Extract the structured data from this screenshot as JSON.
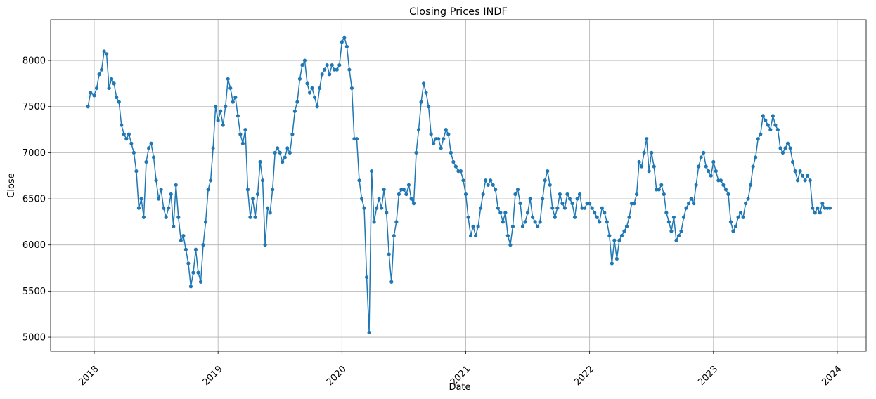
{
  "chart_data": {
    "type": "line",
    "title": "Closing Prices INDF",
    "xlabel": "Date",
    "ylabel": "Close",
    "color": "#1f77b4",
    "grid": true,
    "xlim": [
      2017.648,
      2024.233
    ],
    "xticks": [
      2018,
      2019,
      2020,
      2021,
      2022,
      2023,
      2024
    ],
    "ylim": [
      4848,
      8442
    ],
    "yticks": [
      5000,
      5500,
      6000,
      6500,
      7000,
      7500,
      8000
    ],
    "x": [
      2017.95,
      2017.97,
      2018.0,
      2018.02,
      2018.04,
      2018.06,
      2018.08,
      2018.1,
      2018.12,
      2018.14,
      2018.16,
      2018.18,
      2018.2,
      2018.22,
      2018.24,
      2018.26,
      2018.28,
      2018.3,
      2018.32,
      2018.34,
      2018.36,
      2018.38,
      2018.4,
      2018.42,
      2018.44,
      2018.46,
      2018.48,
      2018.5,
      2018.52,
      2018.54,
      2018.56,
      2018.58,
      2018.6,
      2018.62,
      2018.64,
      2018.66,
      2018.68,
      2018.7,
      2018.72,
      2018.74,
      2018.76,
      2018.78,
      2018.8,
      2018.82,
      2018.84,
      2018.86,
      2018.88,
      2018.9,
      2018.92,
      2018.94,
      2018.96,
      2018.98,
      2019.0,
      2019.02,
      2019.04,
      2019.06,
      2019.08,
      2019.1,
      2019.12,
      2019.14,
      2019.16,
      2019.18,
      2019.2,
      2019.22,
      2019.24,
      2019.26,
      2019.28,
      2019.3,
      2019.32,
      2019.34,
      2019.36,
      2019.38,
      2019.4,
      2019.42,
      2019.44,
      2019.46,
      2019.48,
      2019.5,
      2019.52,
      2019.54,
      2019.56,
      2019.58,
      2019.6,
      2019.62,
      2019.64,
      2019.66,
      2019.68,
      2019.7,
      2019.72,
      2019.74,
      2019.76,
      2019.78,
      2019.8,
      2019.82,
      2019.84,
      2019.86,
      2019.88,
      2019.9,
      2019.92,
      2019.94,
      2019.96,
      2019.98,
      2020.0,
      2020.02,
      2020.04,
      2020.06,
      2020.08,
      2020.1,
      2020.12,
      2020.14,
      2020.16,
      2020.18,
      2020.2,
      2020.22,
      2020.24,
      2020.26,
      2020.28,
      2020.3,
      2020.32,
      2020.34,
      2020.36,
      2020.38,
      2020.4,
      2020.42,
      2020.44,
      2020.46,
      2020.48,
      2020.5,
      2020.52,
      2020.54,
      2020.56,
      2020.58,
      2020.6,
      2020.62,
      2020.64,
      2020.66,
      2020.68,
      2020.7,
      2020.72,
      2020.74,
      2020.76,
      2020.78,
      2020.8,
      2020.82,
      2020.84,
      2020.86,
      2020.88,
      2020.9,
      2020.92,
      2020.94,
      2020.96,
      2020.98,
      2021.0,
      2021.02,
      2021.04,
      2021.06,
      2021.08,
      2021.1,
      2021.12,
      2021.14,
      2021.16,
      2021.18,
      2021.2,
      2021.22,
      2021.24,
      2021.26,
      2021.28,
      2021.3,
      2021.32,
      2021.34,
      2021.36,
      2021.38,
      2021.4,
      2021.42,
      2021.44,
      2021.46,
      2021.48,
      2021.5,
      2021.52,
      2021.54,
      2021.56,
      2021.58,
      2021.6,
      2021.62,
      2021.64,
      2021.66,
      2021.68,
      2021.7,
      2021.72,
      2021.74,
      2021.76,
      2021.78,
      2021.8,
      2021.82,
      2021.84,
      2021.86,
      2021.88,
      2021.9,
      2021.92,
      2021.94,
      2021.96,
      2021.98,
      2022.0,
      2022.02,
      2022.04,
      2022.06,
      2022.08,
      2022.1,
      2022.12,
      2022.14,
      2022.16,
      2022.18,
      2022.2,
      2022.22,
      2022.24,
      2022.26,
      2022.28,
      2022.3,
      2022.32,
      2022.34,
      2022.36,
      2022.38,
      2022.4,
      2022.42,
      2022.44,
      2022.46,
      2022.48,
      2022.5,
      2022.52,
      2022.54,
      2022.56,
      2022.58,
      2022.6,
      2022.62,
      2022.64,
      2022.66,
      2022.68,
      2022.7,
      2022.72,
      2022.74,
      2022.76,
      2022.78,
      2022.8,
      2022.82,
      2022.84,
      2022.86,
      2022.88,
      2022.9,
      2022.92,
      2022.94,
      2022.96,
      2022.98,
      2023.0,
      2023.02,
      2023.04,
      2023.06,
      2023.08,
      2023.1,
      2023.12,
      2023.14,
      2023.16,
      2023.18,
      2023.2,
      2023.22,
      2023.24,
      2023.26,
      2023.28,
      2023.3,
      2023.32,
      2023.34,
      2023.36,
      2023.38,
      2023.4,
      2023.42,
      2023.44,
      2023.46,
      2023.48,
      2023.5,
      2023.52,
      2023.54,
      2023.56,
      2023.58,
      2023.6,
      2023.62,
      2023.64,
      2023.66,
      2023.68,
      2023.7,
      2023.72,
      2023.74,
      2023.76,
      2023.78,
      2023.8,
      2023.82,
      2023.84,
      2023.86,
      2023.88,
      2023.9,
      2023.92,
      2023.94
    ],
    "values": [
      7500,
      7650,
      7620,
      7700,
      7850,
      7900,
      8100,
      8070,
      7700,
      7800,
      7750,
      7600,
      7550,
      7300,
      7200,
      7150,
      7200,
      7100,
      7000,
      6800,
      6400,
      6500,
      6300,
      6900,
      7050,
      7100,
      6950,
      6700,
      6500,
      6600,
      6400,
      6300,
      6400,
      6550,
      6200,
      6650,
      6300,
      6050,
      6100,
      5950,
      5800,
      5550,
      5700,
      5950,
      5700,
      5600,
      6000,
      6250,
      6600,
      6700,
      7050,
      7500,
      7350,
      7450,
      7300,
      7500,
      7800,
      7700,
      7550,
      7600,
      7400,
      7200,
      7100,
      7250,
      6600,
      6300,
      6500,
      6300,
      6550,
      6900,
      6700,
      6000,
      6400,
      6350,
      6600,
      7000,
      7050,
      7000,
      6900,
      6950,
      7050,
      7000,
      7200,
      7450,
      7550,
      7800,
      7950,
      8000,
      7750,
      7650,
      7700,
      7600,
      7500,
      7700,
      7850,
      7900,
      7950,
      7850,
      7950,
      7900,
      7900,
      7950,
      8200,
      8250,
      8150,
      7900,
      7700,
      7150,
      7150,
      6700,
      6500,
      6400,
      5650,
      5050,
      6800,
      6250,
      6400,
      6500,
      6400,
      6600,
      6350,
      5900,
      5600,
      6100,
      6250,
      6550,
      6600,
      6600,
      6550,
      6650,
      6500,
      6450,
      7000,
      7250,
      7550,
      7750,
      7650,
      7500,
      7200,
      7100,
      7150,
      7150,
      7050,
      7150,
      7250,
      7200,
      7000,
      6900,
      6850,
      6800,
      6800,
      6700,
      6550,
      6300,
      6100,
      6200,
      6100,
      6200,
      6400,
      6550,
      6700,
      6650,
      6700,
      6650,
      6600,
      6400,
      6350,
      6250,
      6350,
      6100,
      6000,
      6200,
      6550,
      6600,
      6450,
      6200,
      6250,
      6350,
      6500,
      6300,
      6250,
      6200,
      6250,
      6500,
      6700,
      6800,
      6650,
      6400,
      6300,
      6400,
      6550,
      6450,
      6400,
      6550,
      6500,
      6450,
      6300,
      6500,
      6550,
      6400,
      6400,
      6450,
      6450,
      6400,
      6350,
      6300,
      6250,
      6400,
      6350,
      6250,
      6100,
      5800,
      6050,
      5850,
      6050,
      6100,
      6150,
      6200,
      6300,
      6450,
      6450,
      6550,
      6900,
      6850,
      7000,
      7150,
      6800,
      7000,
      6850,
      6600,
      6600,
      6650,
      6550,
      6350,
      6250,
      6150,
      6300,
      6050,
      6100,
      6150,
      6300,
      6400,
      6450,
      6500,
      6450,
      6650,
      6850,
      6950,
      7000,
      6850,
      6800,
      6750,
      6900,
      6800,
      6700,
      6700,
      6650,
      6600,
      6550,
      6250,
      6150,
      6200,
      6300,
      6350,
      6300,
      6450,
      6500,
      6650,
      6850,
      6950,
      7150,
      7200,
      7400,
      7350,
      7300,
      7250,
      7400,
      7300,
      7250,
      7050,
      7000,
      7050,
      7100,
      7050,
      6900,
      6800,
      6700,
      6800,
      6750,
      6700,
      6750,
      6700,
      6400,
      6350,
      6400,
      6350,
      6450,
      6400,
      6400,
      6400
    ]
  }
}
